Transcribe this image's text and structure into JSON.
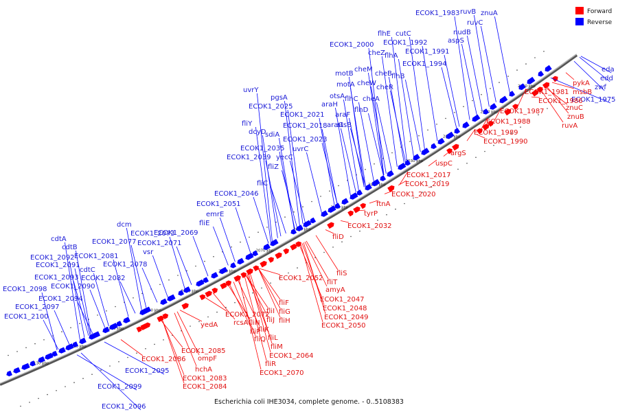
{
  "caption": "Escherichia coli IHE3034, complete genome. - 0..5108383",
  "legend": [
    {
      "label": "Forward",
      "color": "#ff0000"
    },
    {
      "label": "Reverse",
      "color": "#0000ff"
    }
  ],
  "colors": {
    "forward": "#ff0000",
    "reverse": "#0000ff",
    "backbone": "#333333"
  },
  "ticks": [
    "2000 kbp",
    "2010 kbp",
    "2020 kbp",
    "2030 kbp",
    "2040 kbp",
    "2050 kbp",
    "2060 kbp",
    "2070 kbp",
    "2080 kbp",
    "2090 kbp",
    "2100 kbp",
    "2110 kbp",
    "2120 kbp",
    "2130 kbp"
  ],
  "reverse_labels": [
    "ECOK1_1983",
    "ruvB",
    "znuA",
    "ruvC",
    "nudB",
    "aspS",
    "flhE",
    "cutC",
    "ECOK1_1992",
    "ECOK1_2000",
    "cheZ",
    "flhA",
    "ECOK1_1991",
    "ECOK1_1994",
    "cheM",
    "cheB",
    "flhB",
    "motB",
    "motA",
    "cheW",
    "cheR",
    "uvrY",
    "pgsA",
    "otsA",
    "araH",
    "flhC",
    "cheA",
    "ECOK1_2025",
    "araF",
    "flhD",
    "ECOK1_2021",
    "otsB",
    "fliY",
    "araG",
    "dcyD",
    "ECOK1_2018",
    "sdiA",
    "ECOK1_2023",
    "ECOK1_2035",
    "uvrC",
    "ECOK1_2039",
    "yecC",
    "fliZ",
    "fliC",
    "ECOK1_2046",
    "ECOK1_2051",
    "emrE",
    "fliE",
    "dcm",
    "ECOK1_2073",
    "ECOK1_2069",
    "ECOK1_2077",
    "ECOK1_2071",
    "cdtA",
    "vsr",
    "cdtB",
    "ECOK1_2092",
    "ECOK1_2081",
    "ECOK1_2091",
    "ECOK1_2078",
    "cdtC",
    "ECOK1_2093",
    "ECOK1_2082",
    "ECOK1_2098",
    "ECOK1_2090",
    "ECOK1_2094",
    "ECOK1_2097",
    "ECOK1_2100",
    "eda",
    "edd",
    "zwf",
    "ECOK1_1975",
    "ECOK1_2095",
    "ECOK1_2099",
    "ECOK1_2096"
  ],
  "forward_labels": [
    "pykA",
    "msbB",
    "ECOK1_1981",
    "ECOK1_1986",
    "znuC",
    "ECOK1_1987",
    "znuB",
    "ruvA",
    "ECOK1_1988",
    "ECOK1_1989",
    "ECOK1_1990",
    "argS",
    "uspC",
    "ECOK1_2017",
    "ECOK1_2019",
    "ECOK1_2020",
    "ftnA",
    "tyrP",
    "ECOK1_2032",
    "fliD",
    "fliS",
    "ECOK1_2052",
    "fliT",
    "amyA",
    "ECOK1_2047",
    "ECOK1_2048",
    "ECOK1_2049",
    "ECOK1_2050",
    "fliF",
    "fliG",
    "fliI",
    "fliH",
    "fliJ",
    "ECOK1_2072",
    "rcsA",
    "fliN",
    "fliK",
    "fliP",
    "fliL",
    "fliQ",
    "fliM",
    "ECOK1_2064",
    "fliR",
    "ECOK1_2070",
    "yedA",
    "ECOK1_2085",
    "ompF",
    "ECOK1_2086",
    "hchA",
    "ECOK1_2083",
    "ECOK1_2084"
  ]
}
